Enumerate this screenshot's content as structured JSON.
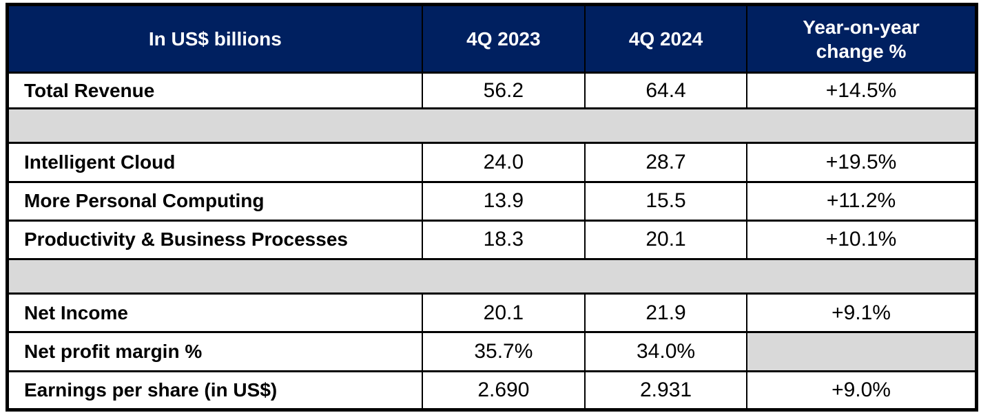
{
  "colors": {
    "header_bg": "#002060",
    "header_text": "#ffffff",
    "spacer_bg": "#d9d9d9",
    "border": "#000000",
    "body_text": "#000000"
  },
  "table": {
    "header": {
      "metric": "In US$ billions",
      "q4_2023": "4Q 2023",
      "q4_2024": "4Q 2024",
      "yoy": "Year-on-year change %"
    },
    "rows": [
      {
        "label": "Total Revenue",
        "q4_2023": "56.2",
        "q4_2024": "64.4",
        "yoy": "+14.5%"
      },
      {
        "label": "Intelligent Cloud",
        "q4_2023": "24.0",
        "q4_2024": "28.7",
        "yoy": "+19.5%"
      },
      {
        "label": "More Personal Computing",
        "q4_2023": "13.9",
        "q4_2024": "15.5",
        "yoy": "+11.2%"
      },
      {
        "label": "Productivity & Business Processes",
        "q4_2023": "18.3",
        "q4_2024": "20.1",
        "yoy": "+10.1%"
      },
      {
        "label": "Net Income",
        "q4_2023": "20.1",
        "q4_2024": "21.9",
        "yoy": "+9.1%"
      },
      {
        "label": "Net profit margin %",
        "q4_2023": "35.7%",
        "q4_2024": "34.0%",
        "yoy": ""
      },
      {
        "label": "Earnings per share (in US$)",
        "q4_2023": "2.690",
        "q4_2024": "2.931",
        "yoy": "+9.0%"
      }
    ]
  },
  "chart_data": {
    "type": "table",
    "title": "In US$ billions",
    "columns": [
      "In US$ billions",
      "4Q 2023",
      "4Q 2024",
      "Year-on-year change %"
    ],
    "rows": [
      [
        "Total Revenue",
        56.2,
        64.4,
        "+14.5%"
      ],
      [
        "Intelligent Cloud",
        24.0,
        28.7,
        "+19.5%"
      ],
      [
        "More Personal Computing",
        13.9,
        15.5,
        "+11.2%"
      ],
      [
        "Productivity & Business Processes",
        18.3,
        20.1,
        "+10.1%"
      ],
      [
        "Net Income",
        20.1,
        21.9,
        "+9.1%"
      ],
      [
        "Net profit margin %",
        "35.7%",
        "34.0%",
        null
      ],
      [
        "Earnings per share (in US$)",
        2.69,
        2.931,
        "+9.0%"
      ]
    ],
    "layout_hints": {
      "header_background": "#002060",
      "spacer_rows_after": [
        "Total Revenue",
        "Productivity & Business Processes"
      ],
      "blank_cells": [
        [
          "Net profit margin %",
          "Year-on-year change %"
        ]
      ]
    }
  }
}
